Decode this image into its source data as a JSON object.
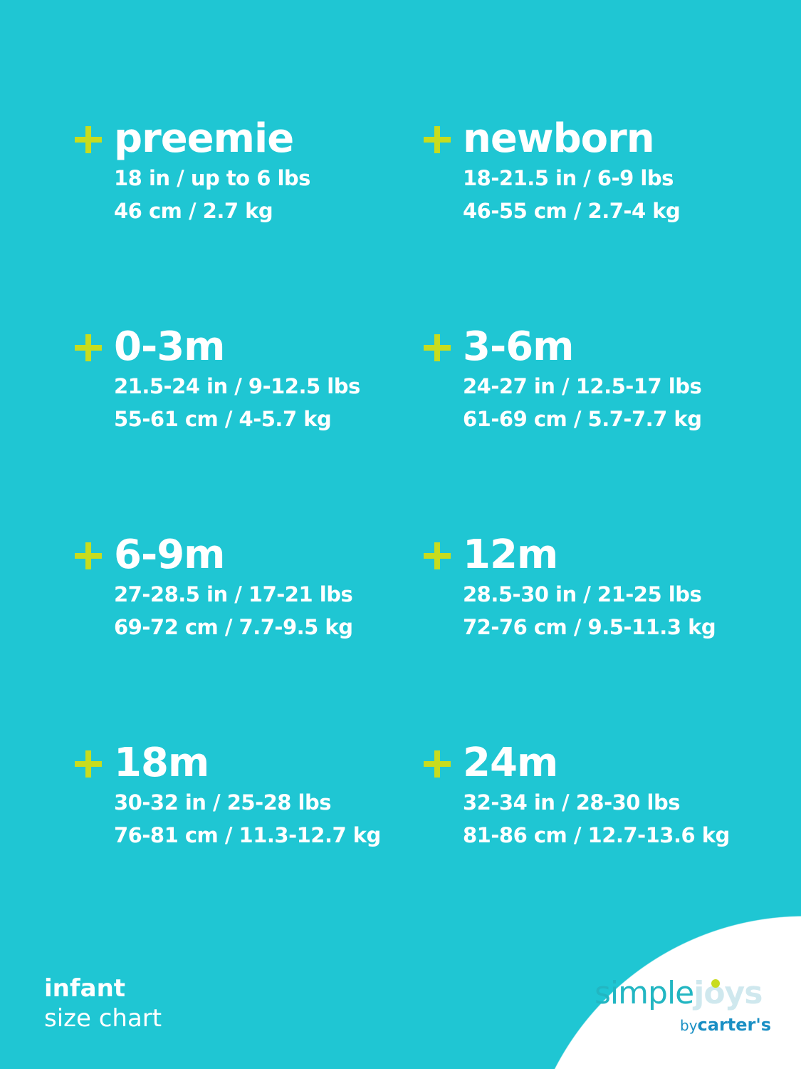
{
  "colors": {
    "background": "#1fc6d3",
    "plus": "#c8dc1e",
    "text": "#ffffff"
  },
  "sizes": [
    {
      "name": "preemie",
      "imperial": "18 in / up to 6 lbs",
      "metric": "46 cm / 2.7 kg"
    },
    {
      "name": "newborn",
      "imperial": "18-21.5 in / 6-9 lbs",
      "metric": "46-55 cm / 2.7-4 kg"
    },
    {
      "name": "0-3m",
      "imperial": "21.5-24 in / 9-12.5 lbs",
      "metric": "55-61 cm / 4-5.7 kg"
    },
    {
      "name": "3-6m",
      "imperial": "24-27 in / 12.5-17 lbs",
      "metric": "61-69 cm / 5.7-7.7 kg"
    },
    {
      "name": "6-9m",
      "imperial": "27-28.5 in / 17-21 lbs",
      "metric": "69-72 cm / 7.7-9.5 kg"
    },
    {
      "name": "12m",
      "imperial": "28.5-30 in / 21-25 lbs",
      "metric": "72-76 cm / 9.5-11.3 kg"
    },
    {
      "name": "18m",
      "imperial": "30-32 in / 25-28 lbs",
      "metric": "76-81 cm / 11.3-12.7 kg"
    },
    {
      "name": "24m",
      "imperial": "32-34 in / 28-30 lbs",
      "metric": "81-86 cm / 12.7-13.6 kg"
    }
  ],
  "footer": {
    "line1": "infant",
    "line2": "size chart"
  },
  "logo": {
    "simple": "simple",
    "joys": "joys",
    "by": "by",
    "carters": "carter's"
  }
}
